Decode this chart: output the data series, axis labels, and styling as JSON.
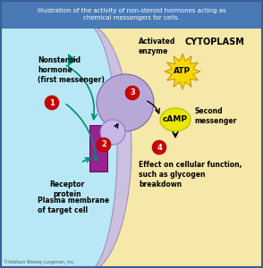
{
  "title": "Illustration of the activity of non-steroid hormones acting as\nchemical messengers for cells.",
  "title_bg": "#4a7ab5",
  "title_color": "white",
  "bg_left": "#b8e8f5",
  "bg_right": "#f5e8a8",
  "membrane_color": "#ccc0e0",
  "membrane_edge": "#9080b0",
  "cytoplasm_label": "CYTOPLASM",
  "nonsteroid_label": "Nonsteroid\nhormone\n(first messenger)",
  "activated_enzyme_label": "Activated\nenzyme",
  "atp_label": "ATP",
  "camp_label": "cAMP",
  "second_messenger_label": "Second\nmessenger",
  "receptor_label": "Receptor\nprotein",
  "membrane_label": "Plasma membrane\nof target cell",
  "effect_label": "Effect on cellular function,\nsuch as glycogen\nbreakdown",
  "copyright": "©Addison Wesley Longman, Inc.",
  "step_color": "#cc0000",
  "step_labels": [
    "1",
    "2",
    "3",
    "4"
  ],
  "teal_color": "#008b6e",
  "receptor_color": "#9b2090",
  "large_circle_color": "#b8a8d8",
  "small_circle_color": "#c8b8e8",
  "atp_burst_color": "#f8d800",
  "camp_color": "#e8e800",
  "arrow_color": "#111111",
  "camp_outline": "#c0c000",
  "border_color": "#3a5f95"
}
